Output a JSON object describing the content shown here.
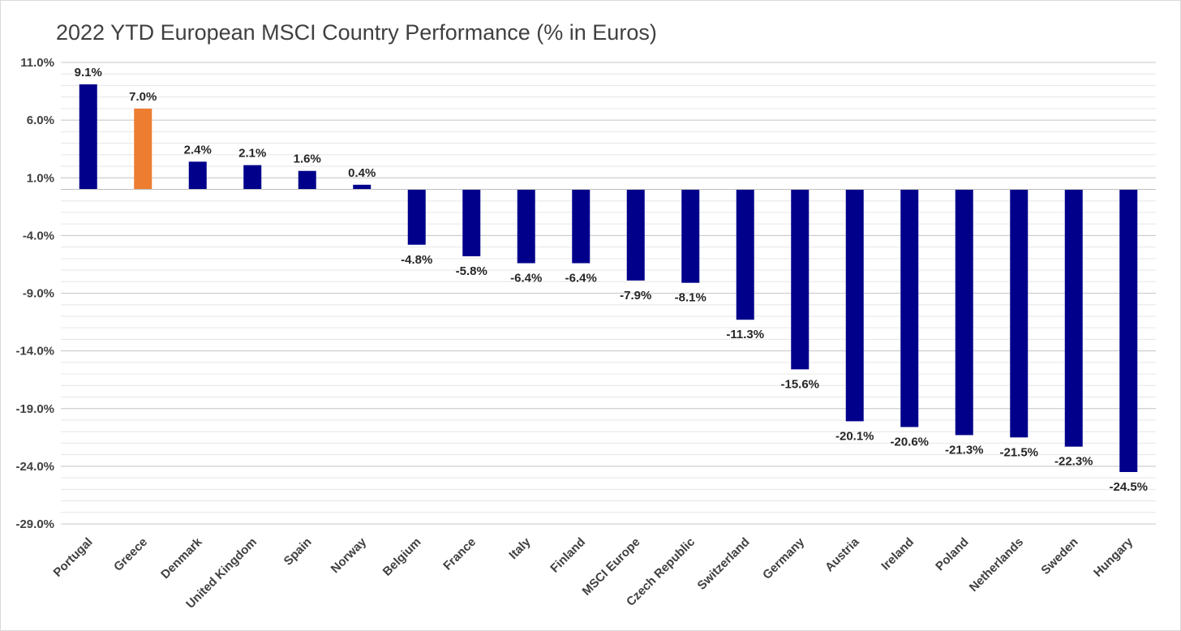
{
  "chart_data": {
    "type": "bar",
    "title": "2022 YTD European MSCI Country Performance (% in Euros)",
    "xlabel": "",
    "ylabel": "",
    "ylim": [
      -29.0,
      11.0
    ],
    "y_ticks": [
      "11.0%",
      "6.0%",
      "1.0%",
      "-4.0%",
      "-9.0%",
      "-14.0%",
      "-19.0%",
      "-24.0%",
      "-29.0%"
    ],
    "y_tick_values": [
      11,
      6,
      1,
      -4,
      -9,
      -14,
      -19,
      -24,
      -29
    ],
    "grid": true,
    "legend": "none",
    "categories": [
      "Portugal",
      "Greece",
      "Denmark",
      "United Kingdom",
      "Spain",
      "Norway",
      "Belgium",
      "France",
      "Italy",
      "Finland",
      "MSCI Europe",
      "Czech Republic",
      "Switzerland",
      "Germany",
      "Austria",
      "Ireland",
      "Poland",
      "Netherlands",
      "Sweden",
      "Hungary"
    ],
    "values": [
      9.1,
      7.0,
      2.4,
      2.1,
      1.6,
      0.4,
      -4.8,
      -5.8,
      -6.4,
      -6.4,
      -7.9,
      -8.1,
      -11.3,
      -15.6,
      -20.1,
      -20.6,
      -21.3,
      -21.5,
      -22.3,
      -24.5
    ],
    "data_labels": [
      "9.1%",
      "7.0%",
      "2.4%",
      "2.1%",
      "1.6%",
      "0.4%",
      "-4.8%",
      "-5.8%",
      "-6.4%",
      "-6.4%",
      "-7.9%",
      "-8.1%",
      "-11.3%",
      "-15.6%",
      "-20.1%",
      "-20.6%",
      "-21.3%",
      "-21.5%",
      "-22.3%",
      "-24.5%"
    ],
    "colors": {
      "default": "#00008b",
      "highlight": "#ed7d31",
      "highlight_category": "Greece",
      "major_grid": "#c8c8c8",
      "minor_grid": "#e6e6e6"
    }
  }
}
